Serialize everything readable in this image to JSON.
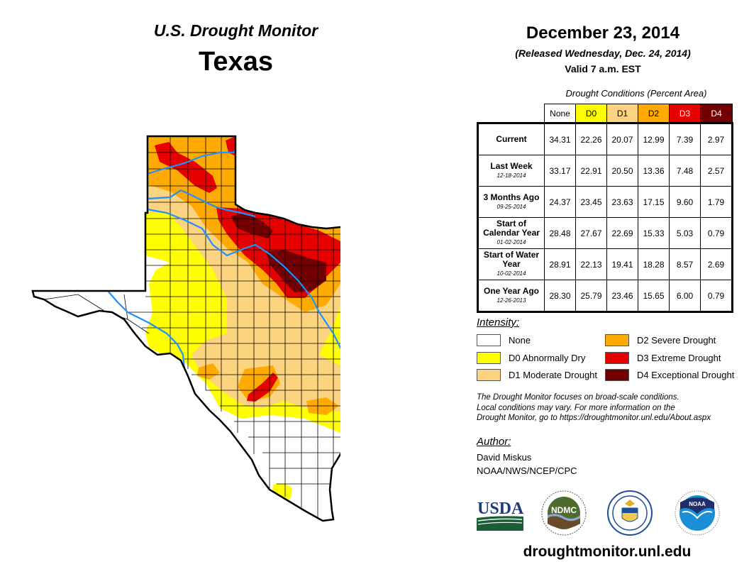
{
  "header": {
    "product": "U.S. Drought Monitor",
    "region": "Texas",
    "date": "December 23, 2014",
    "released": "(Released Wednesday, Dec. 24, 2014)",
    "valid": "Valid 7 a.m. EST"
  },
  "table": {
    "caption": "Drought Conditions (Percent Area)",
    "columns": [
      {
        "label": "None",
        "bg": "#ffffff",
        "fg": "#000000"
      },
      {
        "label": "D0",
        "bg": "#ffff00",
        "fg": "#000000"
      },
      {
        "label": "D1",
        "bg": "#fcd37f",
        "fg": "#000000"
      },
      {
        "label": "D2",
        "bg": "#ffaa00",
        "fg": "#000000"
      },
      {
        "label": "D3",
        "bg": "#e60000",
        "fg": "#ffffff"
      },
      {
        "label": "D4",
        "bg": "#730000",
        "fg": "#ffffff"
      }
    ],
    "rows": [
      {
        "label": "Current",
        "date": "",
        "values": [
          "34.31",
          "22.26",
          "20.07",
          "12.99",
          "7.39",
          "2.97"
        ]
      },
      {
        "label": "Last Week",
        "date": "12-18-2014",
        "values": [
          "33.17",
          "22.91",
          "20.50",
          "13.36",
          "7.48",
          "2.57"
        ]
      },
      {
        "label": "3 Months Ago",
        "date": "09-25-2014",
        "values": [
          "24.37",
          "23.45",
          "23.63",
          "17.15",
          "9.60",
          "1.79"
        ]
      },
      {
        "label": "Start of Calendar Year",
        "date": "01-02-2014",
        "values": [
          "28.48",
          "27.67",
          "22.69",
          "15.33",
          "5.03",
          "0.79"
        ]
      },
      {
        "label": "Start of Water Year",
        "date": "10-02-2014",
        "values": [
          "28.91",
          "22.13",
          "19.41",
          "18.28",
          "8.57",
          "2.69"
        ]
      },
      {
        "label": "One Year Ago",
        "date": "12-26-2013",
        "values": [
          "28.30",
          "25.79",
          "23.46",
          "15.65",
          "6.00",
          "0.79"
        ]
      }
    ]
  },
  "legend": {
    "title": "Intensity:",
    "items": [
      {
        "label": "None",
        "color": "#ffffff"
      },
      {
        "label": "D0 Abnormally Dry",
        "color": "#ffff00"
      },
      {
        "label": "D1 Moderate Drought",
        "color": "#fcd37f"
      },
      {
        "label": "D2 Severe Drought",
        "color": "#ffaa00"
      },
      {
        "label": "D3 Extreme Drought",
        "color": "#e60000"
      },
      {
        "label": "D4 Exceptional Drought",
        "color": "#730000"
      }
    ]
  },
  "disclaimer": [
    "The Drought Monitor focuses on broad-scale conditions.",
    "Local conditions may vary. For more information on the",
    "Drought Monitor, go to https://droughtmonitor.unl.edu/About.aspx"
  ],
  "author": {
    "title": "Author:",
    "name": "David Miskus",
    "org": "NOAA/NWS/NCEP/CPC"
  },
  "logos": [
    {
      "name": "usda-logo",
      "text": "USDA"
    },
    {
      "name": "ndmc-logo",
      "text": "NDMC"
    },
    {
      "name": "commerce-logo",
      "text": ""
    },
    {
      "name": "noaa-logo",
      "text": "NOAA"
    }
  ],
  "website": "droughtmonitor.unl.edu",
  "map": {
    "river_color": "#1e90ff",
    "border_color": "#000000"
  }
}
